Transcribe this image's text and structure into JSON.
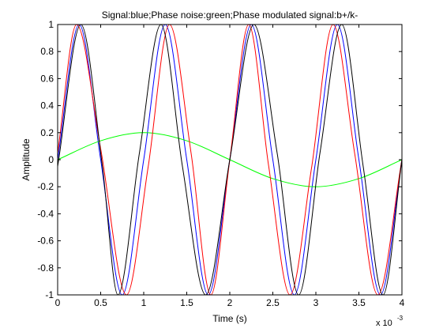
{
  "chart_data": {
    "type": "line",
    "title": "Signal:blue;Phase noise:green;Phase modulated signal:b+/k-",
    "xlabel": "Time (s)",
    "ylabel": "Amplitude",
    "x_exponent_label": "x 10",
    "x_exponent_power": "-3",
    "xlim": [
      0,
      0.004
    ],
    "ylim": [
      -1,
      1
    ],
    "x_ticks": [
      0,
      0.0005,
      0.001,
      0.0015,
      0.002,
      0.0025,
      0.003,
      0.0035,
      0.004
    ],
    "x_tick_labels": [
      "0",
      "0.5",
      "1",
      "1.5",
      "2",
      "2.5",
      "3",
      "3.5",
      "4"
    ],
    "y_ticks": [
      -1,
      -0.8,
      -0.6,
      -0.4,
      -0.2,
      0,
      0.2,
      0.4,
      0.6,
      0.8,
      1
    ],
    "y_tick_labels": [
      "-1",
      "-0.8",
      "-0.6",
      "-0.4",
      "-0.2",
      "0",
      "0.2",
      "0.4",
      "0.6",
      "0.8",
      "1"
    ],
    "grid": false,
    "series": [
      {
        "color": "#0000ff",
        "x": [
          0,
          0.00025,
          0.0005,
          0.00075,
          0.001,
          0.00125,
          0.0015,
          0.00175,
          0.002,
          0.00225,
          0.0025,
          0.00275,
          0.003,
          0.00325,
          0.0035,
          0.00375,
          0.004
        ],
        "y": [
          0,
          1,
          0,
          -1,
          0,
          1,
          0,
          -1,
          0,
          1,
          0,
          -1,
          0,
          1,
          0,
          -1,
          0
        ]
      },
      {
        "color": "#00ff00",
        "x": [
          0,
          0.0005,
          0.001,
          0.0015,
          0.002,
          0.0025,
          0.003,
          0.0035,
          0.004
        ],
        "y": [
          0,
          0.14,
          0.2,
          0.14,
          0,
          -0.14,
          -0.2,
          -0.14,
          0
        ]
      },
      {
        "color": "#ff0000",
        "x": [
          0,
          0.00022,
          0.0005,
          0.0008,
          0.00105,
          0.0013,
          0.00155,
          0.00178,
          0.002,
          0.00222,
          0.00245,
          0.0027,
          0.00295,
          0.0032,
          0.00345,
          0.00372,
          0.004
        ],
        "y": [
          0.05,
          1,
          0.08,
          -1,
          -0.06,
          1,
          0.05,
          -1,
          0.0,
          1,
          -0.04,
          -1,
          -0.06,
          1,
          0.05,
          -1,
          0.0
        ]
      },
      {
        "color": "#000000",
        "x": [
          0,
          0.00027,
          0.00052,
          0.0007,
          0.00095,
          0.0012,
          0.00145,
          0.00172,
          0.002,
          0.00228,
          0.00255,
          0.0028,
          0.00305,
          0.0033,
          0.00355,
          0.00378,
          0.004
        ],
        "y": [
          -0.05,
          1,
          -0.05,
          -1,
          0.05,
          1,
          -0.05,
          -1,
          0.0,
          1,
          0.05,
          -1,
          0.06,
          1,
          -0.05,
          -1,
          0.0
        ]
      }
    ]
  }
}
